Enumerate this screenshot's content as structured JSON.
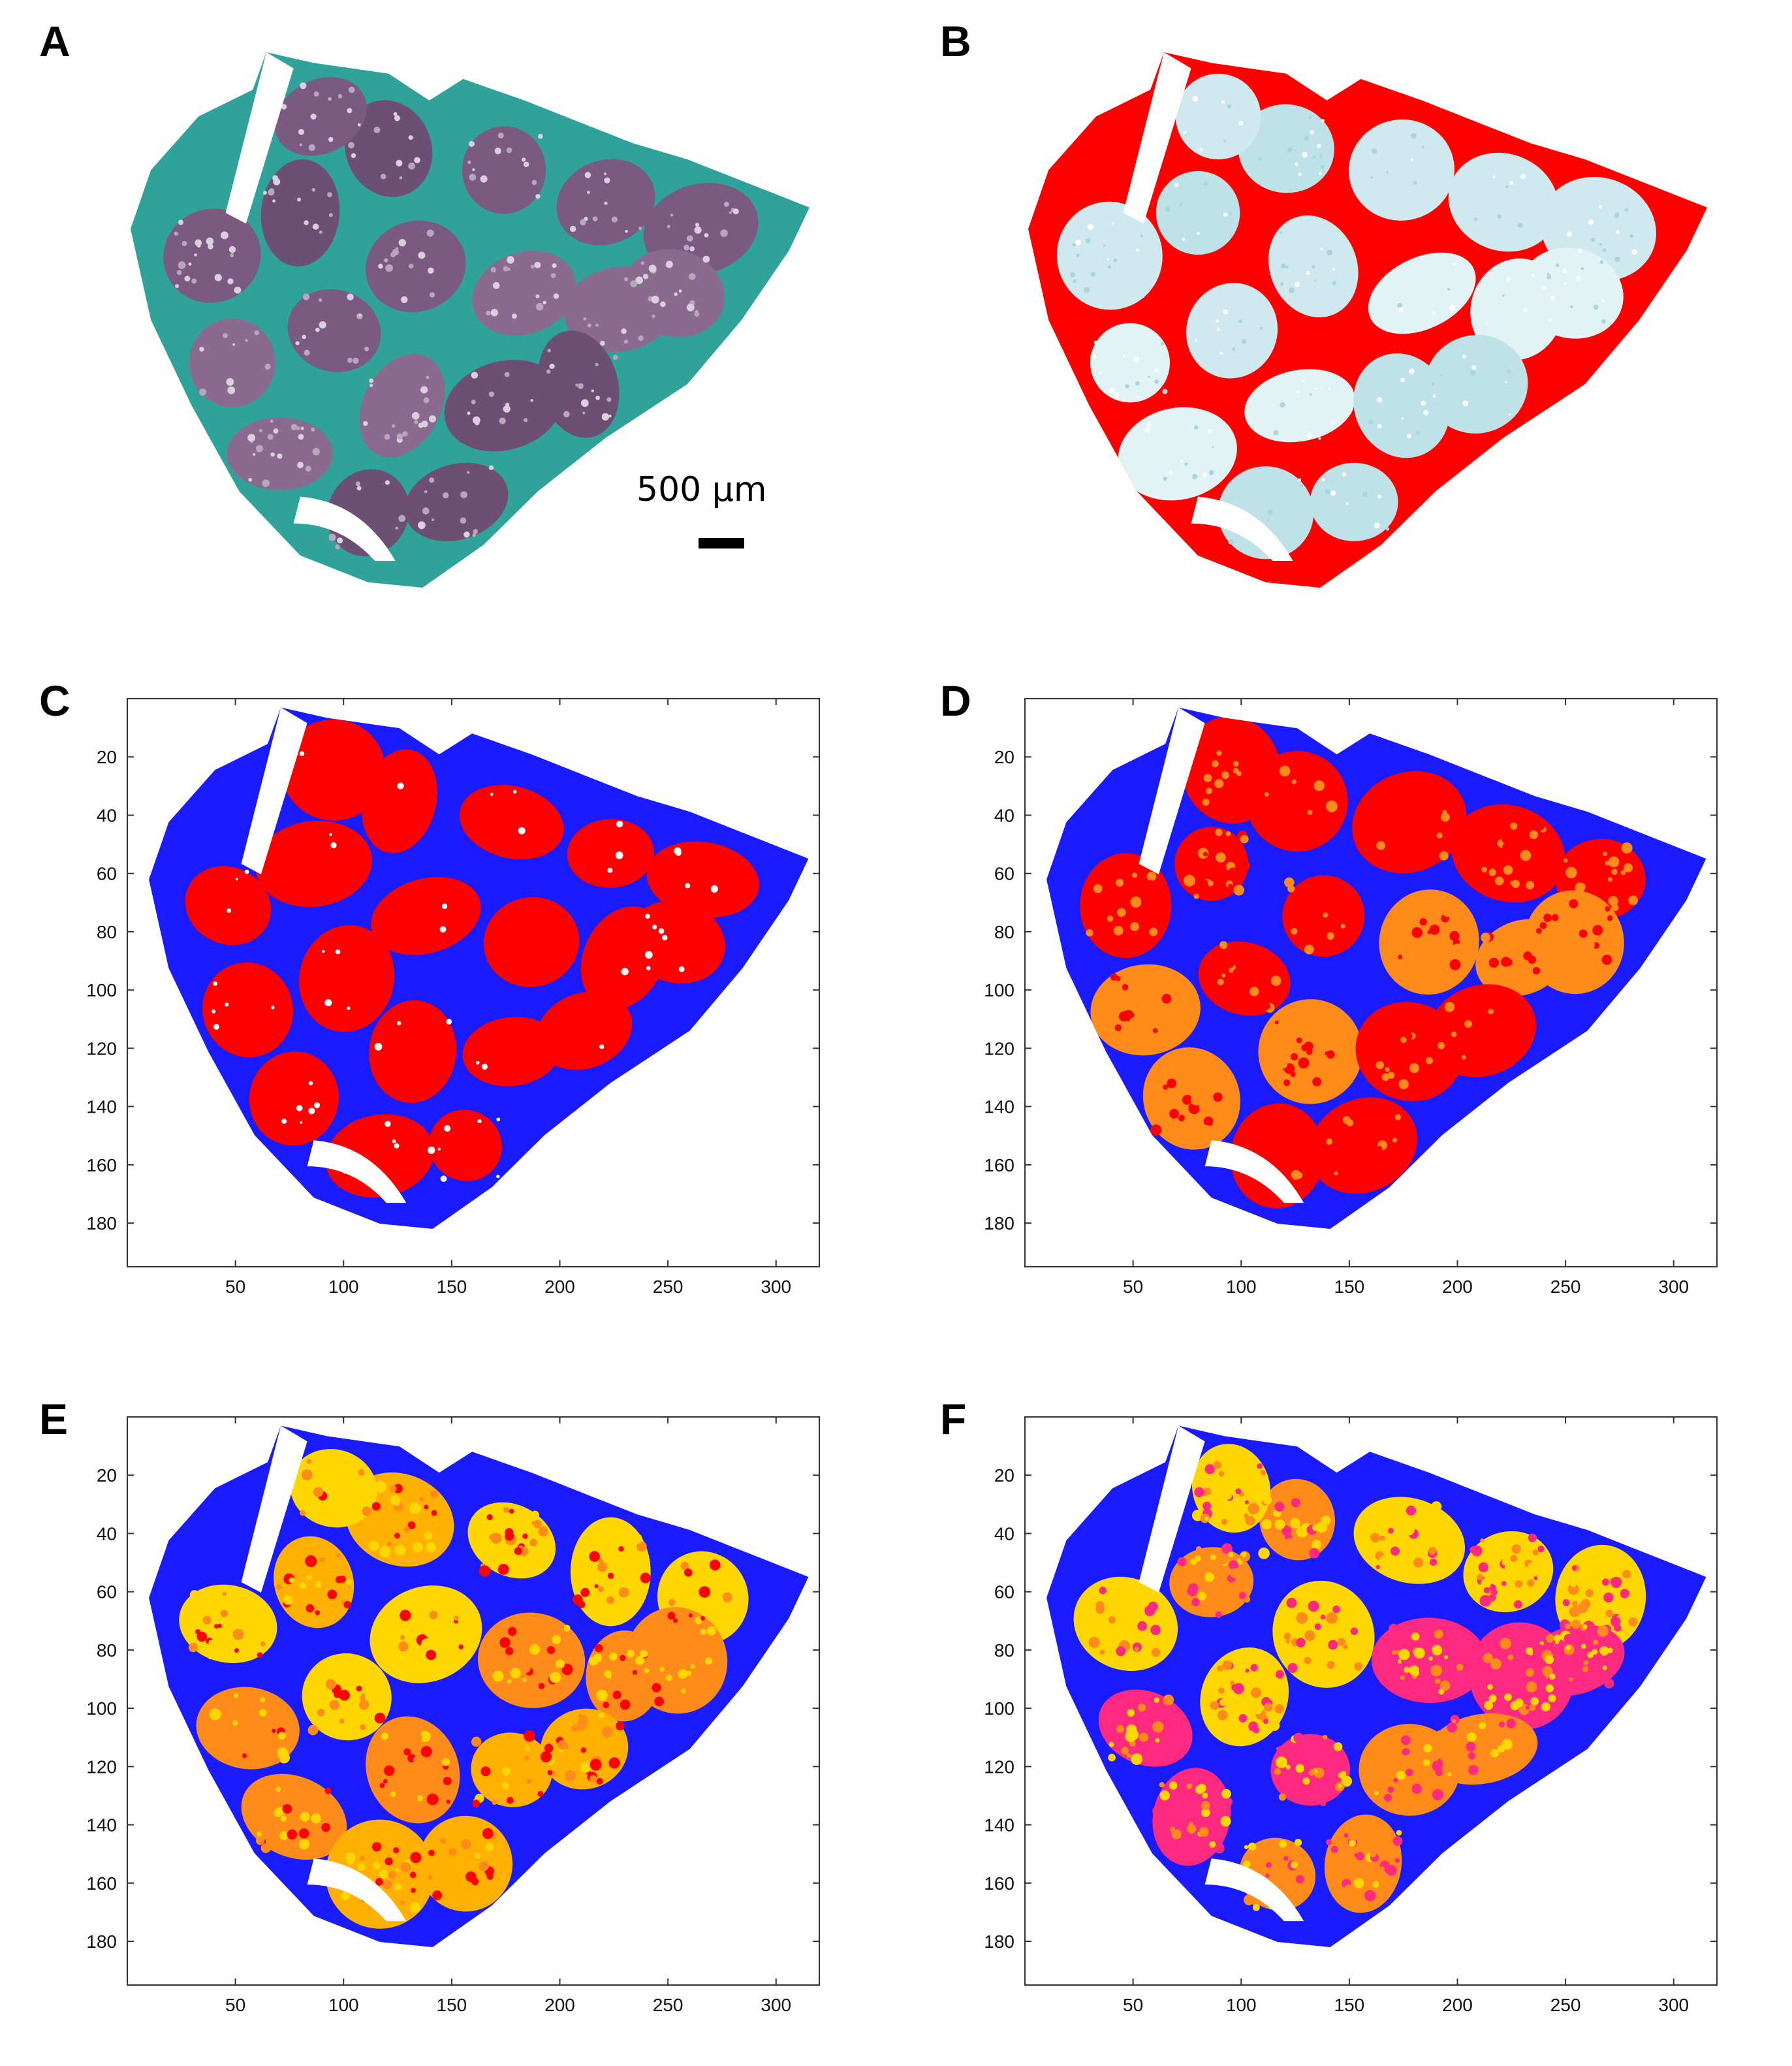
{
  "figure": {
    "panels": [
      {
        "id": "A",
        "label": "A",
        "kind": "stained-section"
      },
      {
        "id": "B",
        "label": "B",
        "kind": "threshold-segmentation"
      },
      {
        "id": "C",
        "label": "C",
        "kind": "cluster-map",
        "clusters": 2
      },
      {
        "id": "D",
        "label": "D",
        "kind": "cluster-map",
        "clusters": 3
      },
      {
        "id": "E",
        "label": "E",
        "kind": "cluster-map",
        "clusters": 4
      },
      {
        "id": "F",
        "label": "F",
        "kind": "cluster-map",
        "clusters": 5
      }
    ],
    "scale_bar": {
      "label": "500 µm"
    },
    "axes": {
      "x_ticks": [
        "50",
        "100",
        "150",
        "200",
        "250",
        "300"
      ],
      "y_ticks": [
        "20",
        "40",
        "60",
        "80",
        "100",
        "120",
        "140",
        "160",
        "180"
      ],
      "x_tick_values": [
        50,
        100,
        150,
        200,
        250,
        300
      ],
      "y_tick_values": [
        20,
        40,
        60,
        80,
        100,
        120,
        140,
        160,
        180
      ],
      "xlim": [
        0,
        320
      ],
      "ylim": [
        0,
        195
      ]
    },
    "colors": {
      "stain_tissue": "#7a5a80",
      "stain_collagen": "#2fa39a",
      "seg_tissue": "#cfe9ee",
      "seg_collagen": "#ff0000",
      "blue": "#1a1aff",
      "red": "#ff0000",
      "orange": "#ff8c1a",
      "yellow": "#ffd700",
      "pink": "#ff2a7f",
      "white": "#ffffff"
    }
  }
}
